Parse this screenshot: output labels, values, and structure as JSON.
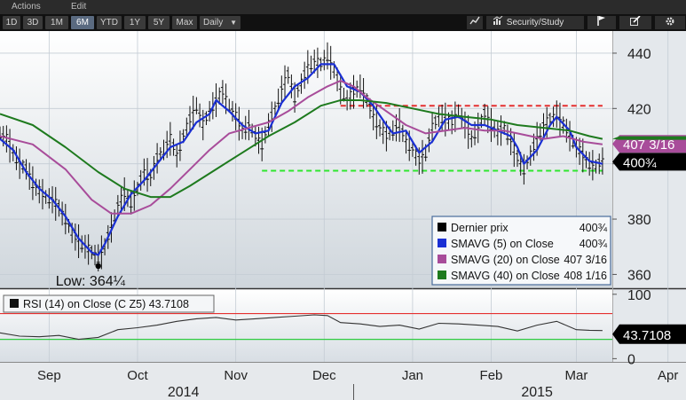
{
  "menu": {
    "actions": "Actions",
    "edit": "Edit"
  },
  "toolbar": {
    "ranges": [
      "1D",
      "3D",
      "1M",
      "6M",
      "YTD",
      "1Y",
      "5Y",
      "Max"
    ],
    "active_range": "6M",
    "period": "Daily",
    "security_study": "Security/Study"
  },
  "chart_data": {
    "type": "line",
    "price_panel": {
      "ylim": [
        355,
        448
      ],
      "yticks": [
        360,
        380,
        400,
        420,
        440
      ],
      "series": [
        {
          "name": "Dernier prix",
          "style": "ohlc-bars",
          "color": "#111111",
          "last": "400¾",
          "points": [
            [
              0,
              411
            ],
            [
              2,
              409
            ],
            [
              4,
              404
            ],
            [
              6,
              400
            ],
            [
              8,
              398
            ],
            [
              10,
              393
            ],
            [
              12,
              390
            ],
            [
              14,
              388
            ],
            [
              16,
              387
            ],
            [
              18,
              384
            ],
            [
              20,
              380
            ],
            [
              22,
              375
            ],
            [
              24,
              372
            ],
            [
              26,
              370
            ],
            [
              28,
              368
            ],
            [
              30,
              366
            ],
            [
              32,
              370
            ],
            [
              34,
              377
            ],
            [
              36,
              385
            ],
            [
              38,
              389
            ],
            [
              40,
              386
            ],
            [
              42,
              391
            ],
            [
              44,
              397
            ],
            [
              46,
              395
            ],
            [
              48,
              402
            ],
            [
              50,
              405
            ],
            [
              52,
              409
            ],
            [
              54,
              403
            ],
            [
              56,
              410
            ],
            [
              58,
              416
            ],
            [
              60,
              421
            ],
            [
              62,
              414
            ],
            [
              64,
              419
            ],
            [
              66,
              423
            ],
            [
              68,
              426
            ],
            [
              70,
              421
            ],
            [
              72,
              417
            ],
            [
              74,
              412
            ],
            [
              76,
              414
            ],
            [
              78,
              410
            ],
            [
              80,
              407
            ],
            [
              82,
              414
            ],
            [
              84,
              420
            ],
            [
              86,
              427
            ],
            [
              88,
              432
            ],
            [
              90,
              424
            ],
            [
              92,
              429
            ],
            [
              94,
              435
            ],
            [
              96,
              437
            ],
            [
              98,
              436
            ],
            [
              100,
              439
            ],
            [
              102,
              434
            ],
            [
              104,
              427
            ],
            [
              106,
              423
            ],
            [
              108,
              426
            ],
            [
              110,
              428
            ],
            [
              112,
              423
            ],
            [
              114,
              417
            ],
            [
              116,
              413
            ],
            [
              118,
              410
            ],
            [
              120,
              412
            ],
            [
              122,
              414
            ],
            [
              124,
              408
            ],
            [
              126,
              405
            ],
            [
              128,
              401
            ],
            [
              130,
              404
            ],
            [
              132,
              413
            ],
            [
              134,
              417
            ],
            [
              136,
              416
            ],
            [
              138,
              415
            ],
            [
              140,
              419
            ],
            [
              142,
              414
            ],
            [
              144,
              409
            ],
            [
              146,
              413
            ],
            [
              148,
              418
            ],
            [
              150,
              414
            ],
            [
              152,
              411
            ],
            [
              154,
              413
            ],
            [
              156,
              408
            ],
            [
              158,
              402
            ],
            [
              160,
              398
            ],
            [
              162,
              403
            ],
            [
              164,
              409
            ],
            [
              166,
              414
            ],
            [
              168,
              416
            ],
            [
              170,
              418
            ],
            [
              172,
              414
            ],
            [
              174,
              410
            ],
            [
              176,
              406
            ],
            [
              178,
              403
            ],
            [
              180,
              400
            ],
            [
              182,
              399
            ],
            [
              184,
              401
            ]
          ]
        },
        {
          "name": "SMAVG (5) on Close",
          "style": "line",
          "color": "#1a2fd4",
          "last": "400¾",
          "points": [
            [
              0,
              409
            ],
            [
              4,
              405
            ],
            [
              8,
              397
            ],
            [
              12,
              391
            ],
            [
              16,
              387
            ],
            [
              20,
              381
            ],
            [
              24,
              373
            ],
            [
              28,
              368
            ],
            [
              30,
              367
            ],
            [
              32,
              371
            ],
            [
              36,
              381
            ],
            [
              40,
              389
            ],
            [
              44,
              394
            ],
            [
              48,
              400
            ],
            [
              52,
              406
            ],
            [
              56,
              408
            ],
            [
              60,
              415
            ],
            [
              64,
              418
            ],
            [
              66,
              423
            ],
            [
              70,
              419
            ],
            [
              74,
              414
            ],
            [
              78,
              411
            ],
            [
              82,
              412
            ],
            [
              86,
              422
            ],
            [
              90,
              428
            ],
            [
              94,
              431
            ],
            [
              98,
              436
            ],
            [
              102,
              436
            ],
            [
              106,
              428
            ],
            [
              110,
              426
            ],
            [
              114,
              421
            ],
            [
              118,
              414
            ],
            [
              120,
              411
            ],
            [
              124,
              412
            ],
            [
              128,
              404
            ],
            [
              132,
              408
            ],
            [
              136,
              416
            ],
            [
              140,
              417
            ],
            [
              144,
              414
            ],
            [
              148,
              414
            ],
            [
              152,
              412
            ],
            [
              156,
              410
            ],
            [
              158,
              406
            ],
            [
              160,
              400
            ],
            [
              164,
              405
            ],
            [
              168,
              414
            ],
            [
              170,
              417
            ],
            [
              174,
              412
            ],
            [
              176,
              406
            ],
            [
              180,
              401
            ],
            [
              184,
              400
            ]
          ]
        },
        {
          "name": "SMAVG (20) on Close",
          "style": "line",
          "color": "#a84c9a",
          "last": "407 3/16",
          "points": [
            [
              0,
              410
            ],
            [
              10,
              407
            ],
            [
              20,
              398
            ],
            [
              28,
              387
            ],
            [
              34,
              382
            ],
            [
              40,
              382
            ],
            [
              46,
              385
            ],
            [
              52,
              391
            ],
            [
              58,
              398
            ],
            [
              64,
              405
            ],
            [
              70,
              411
            ],
            [
              76,
              413
            ],
            [
              82,
              415
            ],
            [
              88,
              419
            ],
            [
              94,
              424
            ],
            [
              100,
              428
            ],
            [
              104,
              430
            ],
            [
              108,
              428
            ],
            [
              112,
              424
            ],
            [
              118,
              419
            ],
            [
              124,
              414
            ],
            [
              130,
              411
            ],
            [
              136,
              412
            ],
            [
              142,
              413
            ],
            [
              148,
              412
            ],
            [
              154,
              412
            ],
            [
              158,
              411
            ],
            [
              162,
              410
            ],
            [
              166,
              409
            ],
            [
              172,
              410
            ],
            [
              178,
              408
            ],
            [
              184,
              407
            ]
          ]
        },
        {
          "name": "SMAVG (40) on Close",
          "style": "line",
          "color": "#1e7a1e",
          "last": "408 1/16",
          "points": [
            [
              0,
              418
            ],
            [
              10,
              414
            ],
            [
              20,
              406
            ],
            [
              30,
              397
            ],
            [
              38,
              391
            ],
            [
              46,
              388
            ],
            [
              52,
              388
            ],
            [
              58,
              392
            ],
            [
              66,
              398
            ],
            [
              74,
              404
            ],
            [
              82,
              410
            ],
            [
              90,
              415
            ],
            [
              98,
              421
            ],
            [
              104,
              423
            ],
            [
              110,
              423
            ],
            [
              118,
              422
            ],
            [
              126,
              420
            ],
            [
              134,
              418
            ],
            [
              142,
              417
            ],
            [
              150,
              416
            ],
            [
              158,
              414
            ],
            [
              166,
              413
            ],
            [
              174,
              412
            ],
            [
              180,
              410
            ],
            [
              184,
              409
            ]
          ]
        }
      ],
      "reference_lines": [
        {
          "value": 421,
          "color": "#e53030",
          "style": "dashed",
          "from": 104,
          "to": 184
        },
        {
          "value": 397.5,
          "color": "#2ee62e",
          "style": "dashed",
          "from": 80,
          "to": 184
        }
      ],
      "annotation": {
        "text": "Low: 364¼",
        "x": 30,
        "y": 364
      }
    },
    "rsi_panel": {
      "title": "RSI (14) on Close (C Z5) 43.7108",
      "ylim": [
        -5,
        108
      ],
      "yticks": [
        0,
        100
      ],
      "overbought": 70,
      "oversold": 30,
      "last": "43.7108",
      "values": [
        [
          0,
          40
        ],
        [
          6,
          35
        ],
        [
          12,
          34
        ],
        [
          18,
          36
        ],
        [
          24,
          30
        ],
        [
          30,
          33
        ],
        [
          36,
          45
        ],
        [
          42,
          48
        ],
        [
          48,
          52
        ],
        [
          54,
          58
        ],
        [
          60,
          62
        ],
        [
          66,
          64
        ],
        [
          72,
          60
        ],
        [
          78,
          62
        ],
        [
          84,
          64
        ],
        [
          90,
          66
        ],
        [
          96,
          68
        ],
        [
          100,
          67
        ],
        [
          104,
          56
        ],
        [
          110,
          54
        ],
        [
          116,
          50
        ],
        [
          122,
          52
        ],
        [
          128,
          46
        ],
        [
          134,
          55
        ],
        [
          140,
          54
        ],
        [
          146,
          52
        ],
        [
          152,
          50
        ],
        [
          158,
          43
        ],
        [
          164,
          52
        ],
        [
          170,
          58
        ],
        [
          176,
          45
        ],
        [
          180,
          44
        ],
        [
          184,
          43.7
        ]
      ]
    },
    "x_axis": {
      "range": [
        0,
        187
      ],
      "months": [
        {
          "label": "Sep",
          "x": 15
        },
        {
          "label": "Oct",
          "x": 42
        },
        {
          "label": "Nov",
          "x": 72
        },
        {
          "label": "Dec",
          "x": 99
        },
        {
          "label": "Jan",
          "x": 126
        },
        {
          "label": "Feb",
          "x": 150
        },
        {
          "label": "Mar",
          "x": 176
        },
        {
          "label": "Apr",
          "x": 204
        }
      ],
      "years": [
        {
          "label": "2014",
          "x": 56
        },
        {
          "label": "2015",
          "x": 164
        }
      ]
    },
    "legend": {
      "items": [
        {
          "label": "Dernier prix",
          "value": "400¾",
          "color": "#000000"
        },
        {
          "label": "SMAVG (5) on Close",
          "value": "400¾",
          "color": "#1a2fd4"
        },
        {
          "label": "SMAVG (20) on Close",
          "value": "407 3/16",
          "color": "#a84c9a"
        },
        {
          "label": "SMAVG (40) on Close",
          "value": "408 1/16",
          "color": "#1e7a1e"
        }
      ]
    }
  }
}
